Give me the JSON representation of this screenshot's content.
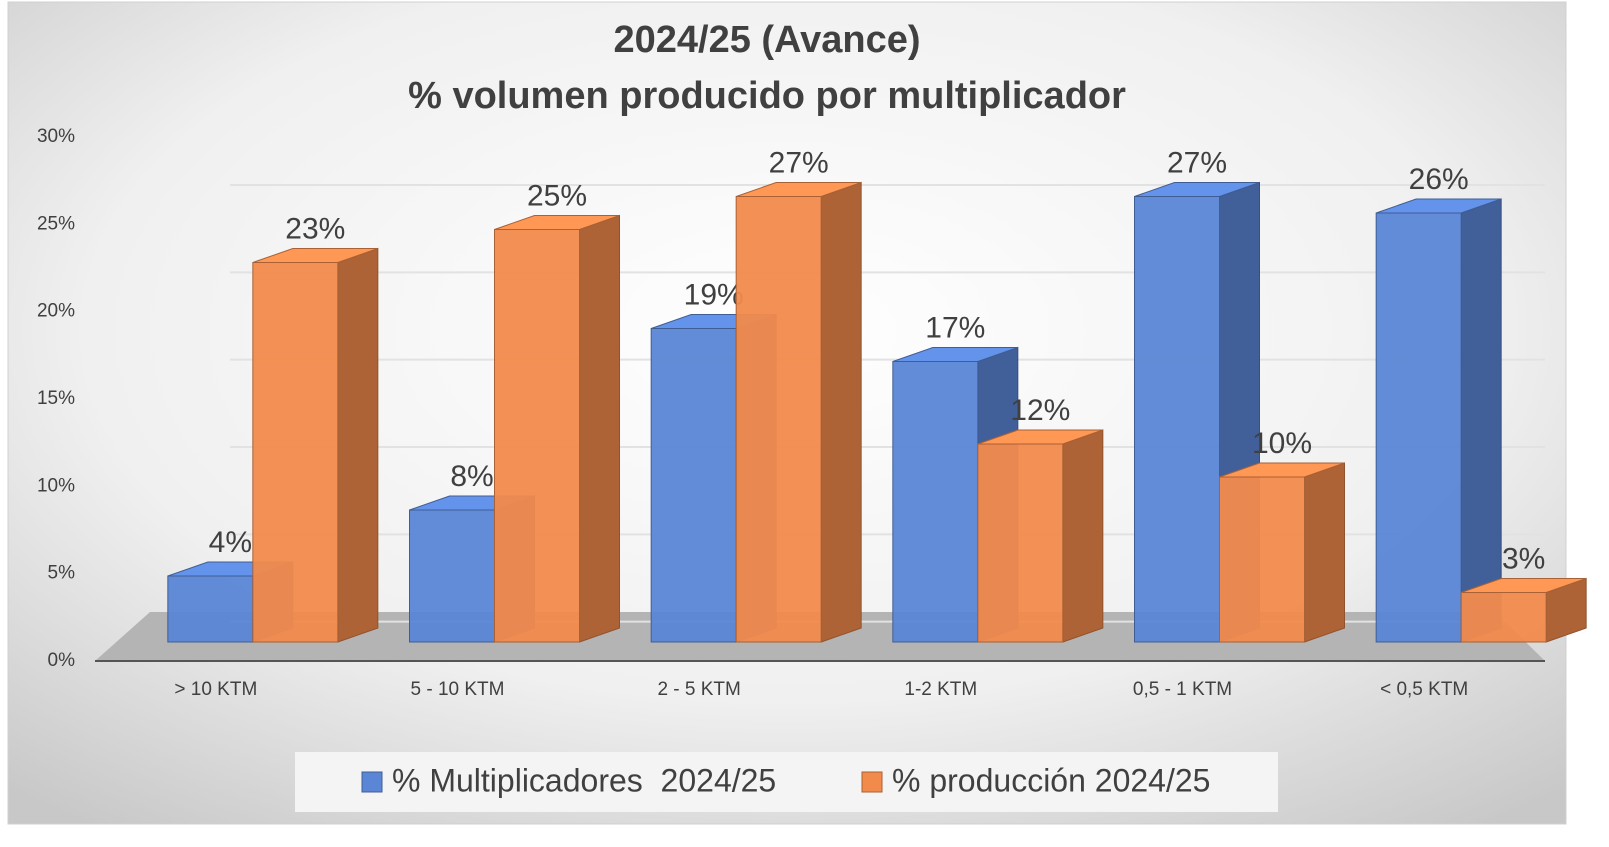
{
  "chart_data": {
    "type": "bar3d",
    "title": "2024/25 (Avance)",
    "subtitle": "% volumen producido por multiplicador",
    "categories": [
      "> 10 KTM",
      "5 - 10 KTM",
      "2 - 5 KTM",
      "1-2 KTM",
      "0,5 - 1 KTM",
      "< 0,5 KTM"
    ],
    "series": [
      {
        "name": "% Multiplicadores  2024/25",
        "color": "#5a86d5",
        "values": [
          4,
          8,
          19,
          17,
          27,
          26
        ],
        "value_labels": [
          "4%",
          "8%",
          "19%",
          "17%",
          "27%",
          "26%"
        ]
      },
      {
        "name": "% producción 2024/25",
        "color": "#f28a4c",
        "values": [
          23,
          25,
          27,
          12,
          10,
          3
        ],
        "value_labels": [
          "23%",
          "25%",
          "27%",
          "12%",
          "10%",
          "3%"
        ]
      }
    ],
    "ylim": [
      0,
      30
    ],
    "yticks": [
      {
        "value": 0,
        "label": "0%"
      },
      {
        "value": 5,
        "label": "5%"
      },
      {
        "value": 10,
        "label": "10%"
      },
      {
        "value": 15,
        "label": "15%"
      },
      {
        "value": 20,
        "label": "20%"
      },
      {
        "value": 25,
        "label": "25%"
      },
      {
        "value": 30,
        "label": "30%"
      }
    ],
    "grid": true,
    "legend": "bottom"
  }
}
